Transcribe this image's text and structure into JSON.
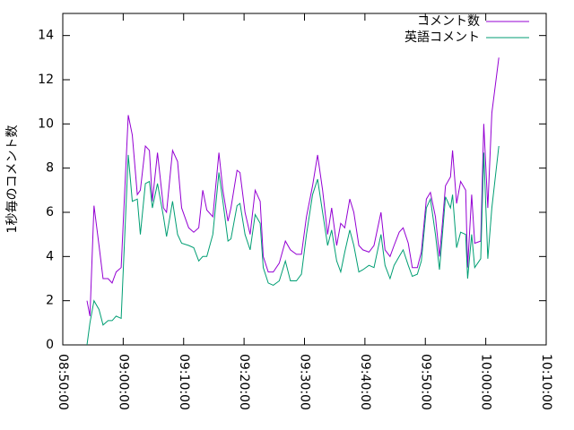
{
  "chart_data": {
    "type": "line",
    "y_label": "1秒毎のコメント数",
    "legend": "top-right",
    "xlim": [
      "08:50:00",
      "10:10:00"
    ],
    "xticks": [
      "08:50:00",
      "09:00:00",
      "09:10:00",
      "09:20:00",
      "09:30:00",
      "09:40:00",
      "09:50:00",
      "10:00:00",
      "10:10:00"
    ],
    "ylim": [
      0,
      15
    ],
    "yticks": [
      0,
      2,
      4,
      6,
      8,
      10,
      12,
      14
    ],
    "x": [
      "08:54:00",
      "08:54:30",
      "08:55:10",
      "08:56:00",
      "08:56:40",
      "08:57:30",
      "08:58:10",
      "08:58:50",
      "08:59:40",
      "09:00:50",
      "09:01:30",
      "09:02:20",
      "09:02:50",
      "09:03:40",
      "09:04:20",
      "09:04:50",
      "09:05:40",
      "09:06:40",
      "09:07:10",
      "09:08:10",
      "09:09:00",
      "09:09:40",
      "09:10:50",
      "09:11:40",
      "09:12:30",
      "09:13:10",
      "09:13:50",
      "09:14:50",
      "09:15:50",
      "09:16:30",
      "09:17:20",
      "09:17:50",
      "09:18:50",
      "09:19:20",
      "09:20:10",
      "09:21:00",
      "09:21:50",
      "09:22:40",
      "09:23:10",
      "09:24:00",
      "09:24:50",
      "09:25:50",
      "09:26:50",
      "09:27:40",
      "09:28:40",
      "09:29:30",
      "09:30:20",
      "09:31:20",
      "09:32:10",
      "09:33:00",
      "09:33:50",
      "09:34:30",
      "09:35:20",
      "09:36:00",
      "09:36:40",
      "09:37:30",
      "09:38:10",
      "09:39:00",
      "09:39:40",
      "09:40:40",
      "09:41:30",
      "09:42:40",
      "09:43:20",
      "09:44:10",
      "09:44:50",
      "09:45:40",
      "09:46:20",
      "09:47:10",
      "09:47:50",
      "09:48:40",
      "09:49:20",
      "09:50:10",
      "09:50:50",
      "09:51:40",
      "09:52:20",
      "09:52:50",
      "09:53:20",
      "09:54:10",
      "09:54:30",
      "09:55:10",
      "09:55:50",
      "09:56:40",
      "09:57:00",
      "09:57:40",
      "09:58:10",
      "09:59:10",
      "09:59:40",
      "10:00:20",
      "10:01:00",
      "10:02:10"
    ],
    "series": [
      {
        "name": "コメント数",
        "color": "#9400d3",
        "values": [
          2.0,
          1.3,
          6.3,
          4.5,
          3.0,
          3.0,
          2.8,
          3.3,
          3.5,
          10.4,
          9.5,
          6.8,
          7.0,
          9.0,
          8.8,
          6.5,
          8.7,
          6.2,
          6.0,
          8.8,
          8.3,
          6.2,
          5.3,
          5.1,
          5.3,
          7.0,
          6.1,
          5.8,
          8.7,
          7.0,
          5.6,
          6.2,
          7.9,
          7.8,
          6.0,
          5.0,
          7.0,
          6.5,
          4.0,
          3.3,
          3.3,
          3.7,
          4.7,
          4.3,
          4.1,
          4.1,
          5.8,
          7.2,
          8.6,
          7.0,
          5.0,
          6.2,
          4.5,
          5.5,
          5.3,
          6.6,
          6.0,
          4.5,
          4.3,
          4.2,
          4.5,
          6.0,
          4.3,
          4.0,
          4.5,
          5.1,
          5.3,
          4.6,
          3.5,
          3.5,
          4.2,
          6.6,
          6.9,
          5.8,
          4.0,
          5.5,
          7.2,
          7.6,
          8.8,
          6.4,
          7.4,
          7.0,
          3.5,
          6.8,
          4.6,
          4.7,
          10.0,
          6.2,
          10.5,
          13.0
        ]
      },
      {
        "name": "英語コメント",
        "color": "#009e73",
        "values": [
          0.0,
          1.0,
          2.0,
          1.6,
          0.9,
          1.1,
          1.1,
          1.3,
          1.2,
          8.6,
          6.5,
          6.6,
          5.0,
          7.3,
          7.4,
          6.2,
          7.3,
          5.8,
          4.9,
          6.5,
          5.0,
          4.6,
          4.5,
          4.4,
          3.8,
          4.0,
          4.0,
          5.0,
          7.8,
          6.5,
          4.7,
          4.8,
          6.3,
          6.4,
          5.0,
          4.3,
          5.9,
          5.5,
          3.5,
          2.8,
          2.7,
          2.9,
          3.8,
          2.9,
          2.9,
          3.2,
          5.0,
          6.8,
          7.5,
          6.0,
          4.5,
          5.2,
          3.8,
          3.3,
          4.2,
          5.2,
          4.5,
          3.3,
          3.4,
          3.6,
          3.5,
          5.0,
          3.6,
          3.0,
          3.6,
          4.0,
          4.3,
          3.6,
          3.1,
          3.2,
          3.8,
          6.2,
          6.6,
          5.0,
          3.4,
          5.0,
          6.7,
          6.2,
          6.8,
          4.4,
          5.1,
          5.0,
          3.0,
          5.0,
          3.5,
          3.9,
          8.7,
          3.9,
          6.2,
          9.0
        ]
      }
    ]
  }
}
